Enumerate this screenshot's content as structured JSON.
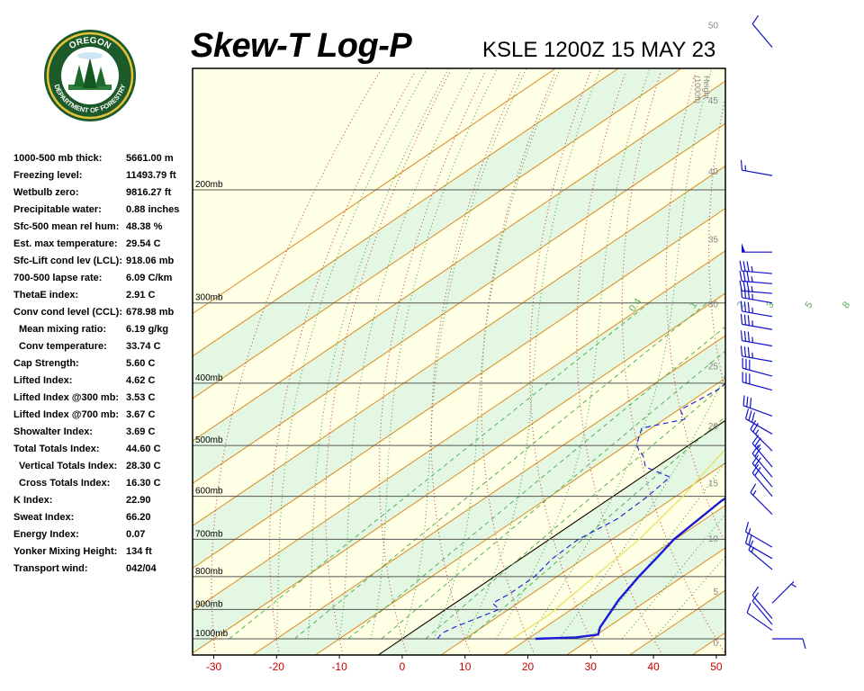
{
  "title": "Skew-T Log-P",
  "station": "KSLE 1200Z 15 MAY 23",
  "logo": {
    "lines": [
      "OREGON",
      "DEPARTMENT OF FORESTRY"
    ],
    "icon": "tree-seal-icon"
  },
  "indices": [
    {
      "label": "1000-500 mb thick:",
      "value": "5661.00 m"
    },
    {
      "label": "Freezing level:",
      "value": "11493.79 ft"
    },
    {
      "label": "Wetbulb zero:",
      "value": "9816.27 ft"
    },
    {
      "label": "Precipitable water:",
      "value": "0.88 inches"
    },
    {
      "label": "Sfc-500 mean rel hum:",
      "value": "48.38 %"
    },
    {
      "label": "Est. max temperature:",
      "value": "29.54 C"
    },
    {
      "label": "Sfc-Lift cond lev (LCL):",
      "value": "918.06 mb"
    },
    {
      "label": "700-500 lapse rate:",
      "value": "6.09 C/km"
    },
    {
      "label": "ThetaE index:",
      "value": "2.91 C"
    },
    {
      "label": "Conv cond level (CCL):",
      "value": "678.98 mb"
    },
    {
      "label": "Mean mixing ratio:",
      "value": "6.19 g/kg",
      "indent": true
    },
    {
      "label": "Conv temperature:",
      "value": "33.74 C",
      "indent": true
    },
    {
      "label": "Cap Strength:",
      "value": "5.60 C"
    },
    {
      "label": "Lifted Index:",
      "value": "4.62 C"
    },
    {
      "label": "Lifted Index @300 mb:",
      "value": "3.53 C"
    },
    {
      "label": "Lifted Index @700 mb:",
      "value": "3.67 C"
    },
    {
      "label": "Showalter Index:",
      "value": "3.69 C"
    },
    {
      "label": "Total Totals Index:",
      "value": "44.60 C"
    },
    {
      "label": "Vertical Totals Index:",
      "value": "28.30 C",
      "indent": true
    },
    {
      "label": "Cross Totals Index:",
      "value": "16.30 C",
      "indent": true
    },
    {
      "label": "K Index:",
      "value": "22.90"
    },
    {
      "label": "Sweat Index:",
      "value": "66.20"
    },
    {
      "label": "Energy Index:",
      "value": "0.07"
    },
    {
      "label": "Yonker Mixing Height:",
      "value": "134 ft"
    },
    {
      "label": "Transport wind:",
      "value": "042/04"
    }
  ],
  "chart_data": {
    "type": "line",
    "chart_kind": "skew-t log-p",
    "xlim": [
      -30,
      50
    ],
    "x_ticks": [
      -30,
      -20,
      -10,
      0,
      10,
      20,
      30,
      40,
      50
    ],
    "x_tick_color": "#cc0000",
    "pressure_range_mb": [
      1000,
      100
    ],
    "pressure_levels": [
      {
        "p": 1000,
        "label": "1000mb"
      },
      {
        "p": 900,
        "label": "900mb"
      },
      {
        "p": 800,
        "label": "800mb"
      },
      {
        "p": 700,
        "label": "700mb"
      },
      {
        "p": 600,
        "label": "600mb"
      },
      {
        "p": 500,
        "label": "500mb"
      },
      {
        "p": 400,
        "label": "400mb"
      },
      {
        "p": 300,
        "label": "300mb"
      },
      {
        "p": 200,
        "label": "200mb"
      }
    ],
    "height_axis": {
      "label_lines": [
        "Height",
        "(1000ft)"
      ],
      "ticks": [
        0,
        5,
        10,
        15,
        20,
        25,
        30,
        35,
        40,
        45,
        50
      ]
    },
    "mixing_ratio_labels": [
      "0.4",
      "1",
      "2",
      "3",
      "5",
      "8"
    ],
    "series": [
      {
        "kind": "temperature",
        "color": "#1a1ad6",
        "style": "solid",
        "points": [
          [
            1000,
            21.2
          ],
          [
            995,
            27.3
          ],
          [
            985,
            30.2
          ],
          [
            960,
            28.8
          ],
          [
            920,
            27.3
          ],
          [
            870,
            25.3
          ],
          [
            800,
            23.0
          ],
          [
            750,
            21.5
          ],
          [
            700,
            19.8
          ],
          [
            650,
            19.0
          ],
          [
            610,
            18.3
          ],
          [
            580,
            18.6
          ],
          [
            560,
            20.4
          ],
          [
            540,
            19.6
          ],
          [
            500,
            16.2
          ],
          [
            460,
            14.6
          ],
          [
            430,
            12.5
          ],
          [
            400,
            9.8
          ],
          [
            370,
            7.2
          ],
          [
            340,
            4.8
          ],
          [
            310,
            2.0
          ],
          [
            290,
            0.4
          ],
          [
            280,
            0.0
          ],
          [
            270,
            0.0
          ],
          [
            260,
            1.2
          ],
          [
            250,
            3.6
          ],
          [
            220,
            1.4
          ],
          [
            200,
            0.0
          ],
          [
            180,
            -1.6
          ],
          [
            160,
            -2.0
          ],
          [
            140,
            -3.5
          ],
          [
            130,
            -4.3
          ]
        ]
      },
      {
        "kind": "dewpoint",
        "color": "#1a1ad6",
        "style": "dashed",
        "points": [
          [
            1000,
            5.6
          ],
          [
            980,
            5.0
          ],
          [
            960,
            5.6
          ],
          [
            940,
            6.5
          ],
          [
            900,
            8.5
          ],
          [
            880,
            6.0
          ],
          [
            850,
            6.5
          ],
          [
            800,
            6.4
          ],
          [
            750,
            5.0
          ],
          [
            700,
            4.6
          ],
          [
            650,
            6.0
          ],
          [
            600,
            5.5
          ],
          [
            560,
            4.5
          ],
          [
            540,
            -1.8
          ],
          [
            520,
            -4.6
          ],
          [
            500,
            -8.3
          ],
          [
            470,
            -11.5
          ],
          [
            455,
            -6.8
          ],
          [
            440,
            -9.7
          ],
          [
            410,
            -8.5
          ],
          [
            390,
            -9.0
          ],
          [
            370,
            -5.5
          ],
          [
            350,
            -7.5
          ],
          [
            330,
            -8.5
          ],
          [
            310,
            -9.7
          ],
          [
            300,
            -14.0
          ],
          [
            290,
            -9.4
          ],
          [
            280,
            -12.0
          ],
          [
            270,
            -13.0
          ],
          [
            255,
            -15.0
          ],
          [
            240,
            -20.9
          ],
          [
            220,
            -26.8
          ],
          [
            200,
            -29.0
          ],
          [
            180,
            -32.6
          ],
          [
            160,
            -35.6
          ],
          [
            140,
            -36.7
          ],
          [
            130,
            -36.3
          ]
        ]
      },
      {
        "kind": "parcel",
        "color": "#e8e055",
        "style": "solid",
        "points": [
          [
            1000,
            17.5
          ],
          [
            918,
            17.7
          ],
          [
            850,
            16.7
          ],
          [
            700,
            14.3
          ],
          [
            600,
            11.1
          ],
          [
            500,
            6.4
          ],
          [
            400,
            0.3
          ],
          [
            300,
            -7.5
          ],
          [
            280,
            -9.3
          ]
        ]
      }
    ],
    "wind_barbs": [
      {
        "p": 1000,
        "dir": 90,
        "spd": 10
      },
      {
        "p": 970,
        "dir": 305,
        "spd": 10
      },
      {
        "p": 950,
        "dir": 320,
        "spd": 10
      },
      {
        "p": 930,
        "dir": 320,
        "spd": 10
      },
      {
        "p": 880,
        "dir": 45,
        "spd": 5
      },
      {
        "p": 780,
        "dir": 310,
        "spd": 15
      },
      {
        "p": 750,
        "dir": 300,
        "spd": 20
      },
      {
        "p": 720,
        "dir": 300,
        "spd": 15
      },
      {
        "p": 640,
        "dir": 315,
        "spd": 15
      },
      {
        "p": 600,
        "dir": 320,
        "spd": 20
      },
      {
        "p": 580,
        "dir": 320,
        "spd": 20
      },
      {
        "p": 560,
        "dir": 320,
        "spd": 20
      },
      {
        "p": 540,
        "dir": 320,
        "spd": 25
      },
      {
        "p": 510,
        "dir": 315,
        "spd": 25
      },
      {
        "p": 480,
        "dir": 300,
        "spd": 30
      },
      {
        "p": 450,
        "dir": 290,
        "spd": 30
      },
      {
        "p": 410,
        "dir": 285,
        "spd": 30
      },
      {
        "p": 390,
        "dir": 285,
        "spd": 30
      },
      {
        "p": 370,
        "dir": 280,
        "spd": 35
      },
      {
        "p": 350,
        "dir": 280,
        "spd": 35
      },
      {
        "p": 330,
        "dir": 280,
        "spd": 35
      },
      {
        "p": 315,
        "dir": 280,
        "spd": 35
      },
      {
        "p": 300,
        "dir": 280,
        "spd": 35
      },
      {
        "p": 290,
        "dir": 275,
        "spd": 35
      },
      {
        "p": 280,
        "dir": 275,
        "spd": 35
      },
      {
        "p": 270,
        "dir": 275,
        "spd": 35
      },
      {
        "p": 250,
        "dir": 270,
        "spd": 50
      },
      {
        "p": 190,
        "dir": 280,
        "spd": 15
      },
      {
        "p": 120,
        "dir": 320,
        "spd": 10
      }
    ]
  }
}
